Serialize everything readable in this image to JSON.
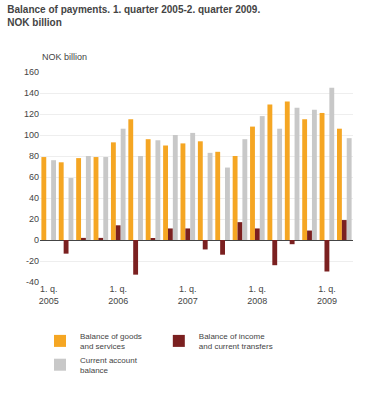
{
  "chart_data": {
    "type": "bar",
    "title": "Balance of payments. 1. quarter 2005-2. quarter 2009.",
    "subtitle": "NOK billion",
    "ylabel": "NOK billion",
    "categories": [
      "1. q.\n2005",
      null,
      null,
      null,
      "1. q.\n2006",
      null,
      null,
      null,
      "1. q.\n2007",
      null,
      null,
      null,
      "1. q.\n2008",
      null,
      null,
      null,
      "1. q.\n2009",
      null
    ],
    "series": [
      {
        "name": "Balance of goods\nand services",
        "color": "#F5A623",
        "values": [
          79,
          74,
          78,
          79,
          93,
          115,
          96,
          90,
          92,
          94,
          84,
          80,
          108,
          129,
          132,
          115,
          121,
          106
        ]
      },
      {
        "name": "Balance of income\nand current transfers",
        "color": "#7B2020",
        "values": [
          0,
          -13,
          2,
          2,
          14,
          -33,
          1,
          11,
          11,
          -9,
          -14,
          17,
          11,
          -24,
          -4,
          9,
          -30,
          19
        ]
      },
      {
        "name": "Current account\nbalance",
        "color": "#C8C8C8",
        "values": [
          76,
          59,
          80,
          79,
          106,
          80,
          95,
          100,
          102,
          83,
          69,
          96,
          118,
          106,
          126,
          124,
          145,
          97
        ]
      }
    ],
    "ylim": [
      -40,
      160
    ],
    "yticks": [
      -40,
      -20,
      0,
      20,
      40,
      60,
      80,
      100,
      120,
      140,
      160
    ],
    "grid": true,
    "legend": "lower left"
  }
}
